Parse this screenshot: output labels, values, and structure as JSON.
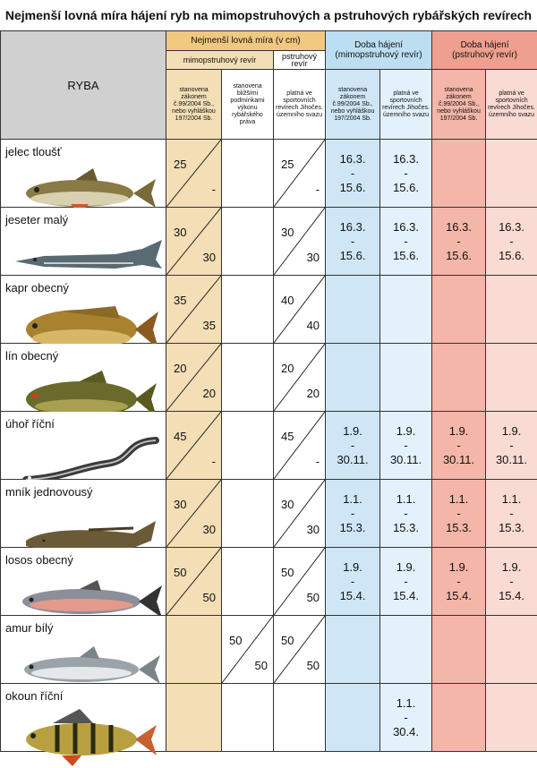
{
  "title": "Nejmenší lovná míra hájení ryb na mimopstruhových a pstruhových rybářských revírech",
  "header": {
    "ryba": "RYBA",
    "min_size": "Nejmenší lovná míra (v cm)",
    "mimo": "mimopstruhový revír",
    "pstruh": "pstruhový revír",
    "doba_mimo_1": "Doba hájení",
    "doba_mimo_2": "(mimopstruhový revír)",
    "doba_pstruh_1": "Doba hájení",
    "doba_pstruh_2": "(pstruhový revír)",
    "c1": "stanovena zákonem č.99/2004 Sb., nebo vyhláškou 197/2004 Sb.",
    "c2": "stanovena bližšími podmínkami výkonu rybářského práva",
    "c3": "platná ve sportovních revírech Jihočes. územního svazu",
    "c4": "stanovena zákonem č.99/2004 Sb., nebo vyhláškou 197/2004 Sb.",
    "c5": "platná ve sportovních revírech Jihočes. územního svazu",
    "c6": "stanovena zákonem č.99/2004 Sb., nebo vyhláškou 197/2004 Sb.",
    "c7": "platná ve sportovních revírech Jihočes. územního svazu"
  },
  "fish": [
    {
      "name": "jelec tloušť",
      "icon": "chub",
      "a": [
        "25",
        "-"
      ],
      "b": [
        "",
        ""
      ],
      "c": [
        "25",
        "-"
      ],
      "d4": [
        "16.3.",
        "-",
        "15.6."
      ],
      "d5": [
        "16.3.",
        "-",
        "15.6."
      ],
      "d6": [
        "",
        "",
        ""
      ],
      "d7": [
        "",
        "",
        ""
      ]
    },
    {
      "name": "jeseter malý",
      "icon": "sterlet",
      "a": [
        "30",
        "30"
      ],
      "b": [
        "",
        ""
      ],
      "c": [
        "30",
        "30"
      ],
      "d4": [
        "16.3.",
        "-",
        "15.6."
      ],
      "d5": [
        "16.3.",
        "-",
        "15.6."
      ],
      "d6": [
        "16.3.",
        "-",
        "15.6."
      ],
      "d7": [
        "16.3.",
        "-",
        "15.6."
      ]
    },
    {
      "name": "kapr obecný",
      "icon": "carp",
      "a": [
        "35",
        "35"
      ],
      "b": [
        "",
        ""
      ],
      "c": [
        "40",
        "40"
      ],
      "d4": [
        "",
        "",
        ""
      ],
      "d5": [
        "",
        "",
        ""
      ],
      "d6": [
        "",
        "",
        ""
      ],
      "d7": [
        "",
        "",
        ""
      ]
    },
    {
      "name": "lín obecný",
      "icon": "tench",
      "a": [
        "20",
        "20"
      ],
      "b": [
        "",
        ""
      ],
      "c": [
        "20",
        "20"
      ],
      "d4": [
        "",
        "",
        ""
      ],
      "d5": [
        "",
        "",
        ""
      ],
      "d6": [
        "",
        "",
        ""
      ],
      "d7": [
        "",
        "",
        ""
      ]
    },
    {
      "name": "úhoř říční",
      "icon": "eel",
      "a": [
        "45",
        "-"
      ],
      "b": [
        "",
        ""
      ],
      "c": [
        "45",
        "-"
      ],
      "d4": [
        "1.9.",
        "-",
        "30.11."
      ],
      "d5": [
        "1.9.",
        "-",
        "30.11."
      ],
      "d6": [
        "1.9.",
        "-",
        "30.11."
      ],
      "d7": [
        "1.9.",
        "-",
        "30.11."
      ]
    },
    {
      "name": "mník jednovousý",
      "icon": "burbot",
      "a": [
        "30",
        "30"
      ],
      "b": [
        "",
        ""
      ],
      "c": [
        "30",
        "30"
      ],
      "d4": [
        "1.1.",
        "-",
        "15.3."
      ],
      "d5": [
        "1.1.",
        "-",
        "15.3."
      ],
      "d6": [
        "1.1.",
        "-",
        "15.3."
      ],
      "d7": [
        "1.1.",
        "-",
        "15.3."
      ]
    },
    {
      "name": "losos obecný",
      "icon": "salmon",
      "a": [
        "50",
        "50"
      ],
      "b": [
        "",
        ""
      ],
      "c": [
        "50",
        "50"
      ],
      "d4": [
        "1.9.",
        "-",
        "15.4."
      ],
      "d5": [
        "1.9.",
        "-",
        "15.4."
      ],
      "d6": [
        "1.9.",
        "-",
        "15.4."
      ],
      "d7": [
        "1.9.",
        "-",
        "15.4."
      ]
    },
    {
      "name": "amur bílý",
      "icon": "grass-carp",
      "a": [
        "",
        ""
      ],
      "b": [
        "50",
        "50"
      ],
      "c": [
        "50",
        "50"
      ],
      "d4": [
        "",
        "",
        ""
      ],
      "d5": [
        "",
        "",
        ""
      ],
      "d6": [
        "",
        "",
        ""
      ],
      "d7": [
        "",
        "",
        ""
      ]
    },
    {
      "name": "okoun říční",
      "icon": "perch",
      "a": [
        "",
        ""
      ],
      "b": [
        "",
        ""
      ],
      "c": [
        "",
        ""
      ],
      "d4": [
        "",
        "",
        ""
      ],
      "d5": [
        "1.1.",
        "-",
        "30.4."
      ],
      "d6": [
        "",
        "",
        ""
      ],
      "d7": [
        "",
        "",
        ""
      ]
    }
  ],
  "colors": {
    "orange": "#f3deb6",
    "blue": "#cfe6f6",
    "red": "#f4b6a8"
  }
}
